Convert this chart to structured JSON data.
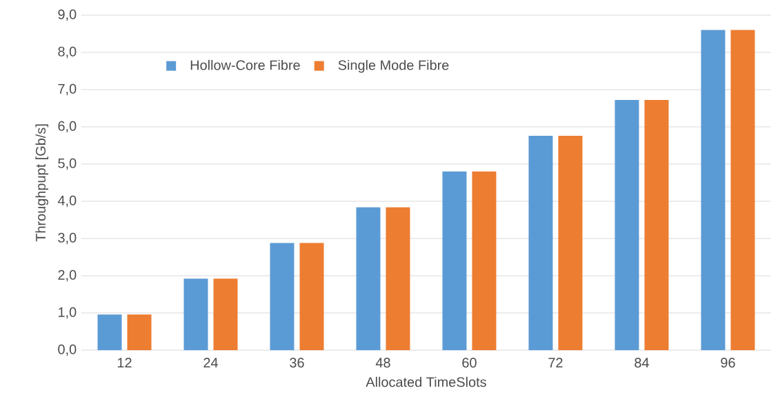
{
  "chart_data": {
    "type": "bar",
    "xlabel": "Allocated TimeSlots",
    "ylabel": "Throughpupt [Gb/s]",
    "categories": [
      "12",
      "24",
      "36",
      "48",
      "60",
      "72",
      "84",
      "96"
    ],
    "series": [
      {
        "name": "Hollow-Core Fibre",
        "color": "#5b9bd5",
        "values": [
          0.96,
          1.92,
          2.88,
          3.84,
          4.8,
          5.76,
          6.72,
          8.6
        ]
      },
      {
        "name": "Single Mode Fibre",
        "color": "#ed7d31",
        "values": [
          0.96,
          1.92,
          2.88,
          3.84,
          4.8,
          5.76,
          6.72,
          8.6
        ]
      }
    ],
    "ylim": [
      0,
      9
    ],
    "yticks": [
      {
        "value": 0,
        "label": "0,0"
      },
      {
        "value": 1,
        "label": "1,0"
      },
      {
        "value": 2,
        "label": "2,0"
      },
      {
        "value": 3,
        "label": "3,0"
      },
      {
        "value": 4,
        "label": "4,0"
      },
      {
        "value": 5,
        "label": "5,0"
      },
      {
        "value": 6,
        "label": "6,0"
      },
      {
        "value": 7,
        "label": "7,0"
      },
      {
        "value": 8,
        "label": "8,0"
      },
      {
        "value": 9,
        "label": "9,0"
      }
    ],
    "grid": "y",
    "legend": "top left"
  }
}
